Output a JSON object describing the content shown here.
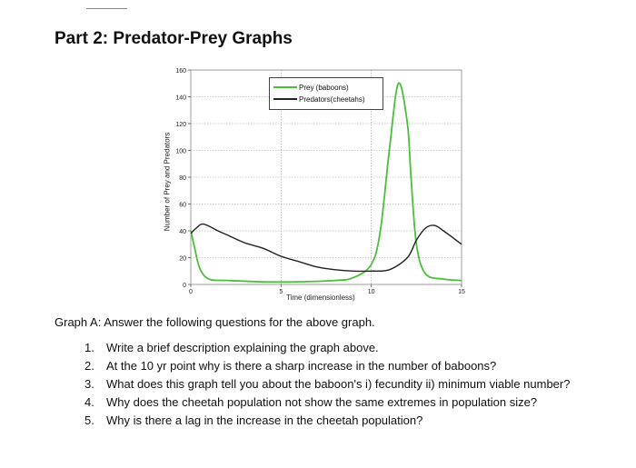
{
  "title": "Part 2: Predator-Prey Graphs",
  "chart_data": {
    "type": "line",
    "title": "",
    "xlabel": "Time (dimensionless)",
    "ylabel": "Number of Prey and Predators",
    "xlim": [
      0,
      15
    ],
    "ylim": [
      0,
      160
    ],
    "x_ticks": [
      "0",
      "5",
      "10",
      "15"
    ],
    "y_ticks": [
      "0",
      "20",
      "40",
      "60",
      "80",
      "100",
      "120",
      "140",
      "160"
    ],
    "grid": true,
    "legend_position": "top-right",
    "series": [
      {
        "name": "Prey (baboons)",
        "color": "#4cbf3a",
        "x": [
          0,
          0.2,
          0.5,
          1,
          2,
          4,
          6,
          8,
          9,
          10,
          10.5,
          11,
          11.5,
          12,
          12.2,
          12.5,
          13,
          14,
          15
        ],
        "y": [
          40,
          28,
          12,
          4,
          3,
          2,
          2,
          3,
          5,
          15,
          40,
          100,
          150,
          120,
          80,
          30,
          8,
          4,
          3
        ]
      },
      {
        "name": "Predators(cheetahs)",
        "color": "#222222",
        "x": [
          0,
          0.3,
          0.7,
          1.5,
          2,
          3,
          4,
          5,
          6,
          7,
          8,
          9,
          10,
          11,
          12,
          12.5,
          13,
          13.5,
          14,
          15
        ],
        "y": [
          38,
          42,
          45,
          40,
          37,
          31,
          27,
          21,
          17,
          13,
          11,
          10,
          10,
          11,
          20,
          33,
          42,
          44,
          40,
          30
        ]
      }
    ]
  },
  "questions": {
    "heading": "Graph A: Answer the following questions for the above graph.",
    "items": [
      {
        "num": "1.",
        "text": "Write a brief description explaining the graph above."
      },
      {
        "num": "2.",
        "text": "At the 10 yr point why is there a sharp increase in the number of baboons?"
      },
      {
        "num": "3.",
        "text": "What does this graph tell you about the baboon's i) fecundity ii) minimum viable number?"
      },
      {
        "num": "4.",
        "text": "Why does the cheetah population not show the same extremes in population size?"
      },
      {
        "num": "5.",
        "text": "Why is there a lag in the increase in the cheetah population?"
      }
    ]
  }
}
